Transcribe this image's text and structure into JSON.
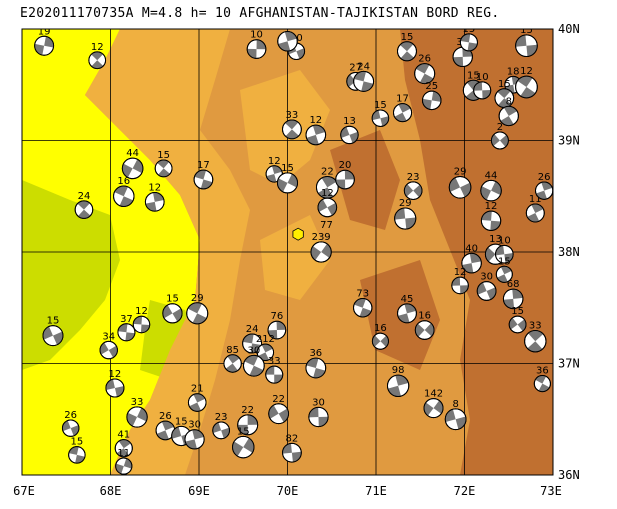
{
  "title": "E202011170735A M=4.8 h= 10 AFGHANISTAN-TAJIKISTAN BORD REG.",
  "colors": {
    "lowland": "#ffff00",
    "plain": "#ccdd00",
    "hill": "#f0b040",
    "mountain": "#e09a40",
    "highmountain": "#c07030",
    "grid": "#000000",
    "event_marker": "#ffee00"
  },
  "axes": {
    "x_labels": [
      "67E",
      "68E",
      "69E",
      "70E",
      "71E",
      "72E",
      "73E"
    ],
    "y_labels": [
      "40N",
      "39N",
      "38N",
      "37N",
      "36N"
    ]
  },
  "event": {
    "lon": 70.12,
    "lat": 38.16,
    "label": "77"
  },
  "mechanisms": [
    {
      "lon": 67.25,
      "lat": 39.85,
      "depth": "19"
    },
    {
      "lon": 67.85,
      "lat": 39.72,
      "depth": "12"
    },
    {
      "lon": 69.65,
      "lat": 39.82,
      "depth": "10"
    },
    {
      "lon": 70.1,
      "lat": 39.8,
      "depth": "20"
    },
    {
      "lon": 70.0,
      "lat": 39.89,
      "depth": "23"
    },
    {
      "lon": 70.77,
      "lat": 39.53,
      "depth": "27"
    },
    {
      "lon": 70.86,
      "lat": 39.53,
      "depth": "24"
    },
    {
      "lon": 71.35,
      "lat": 39.8,
      "depth": "15"
    },
    {
      "lon": 71.55,
      "lat": 39.6,
      "depth": "26"
    },
    {
      "lon": 71.98,
      "lat": 39.75,
      "depth": "32"
    },
    {
      "lon": 72.05,
      "lat": 39.88,
      "depth": "15"
    },
    {
      "lon": 72.7,
      "lat": 39.85,
      "depth": "15"
    },
    {
      "lon": 72.55,
      "lat": 39.5,
      "depth": "18"
    },
    {
      "lon": 72.7,
      "lat": 39.48,
      "depth": "12"
    },
    {
      "lon": 71.63,
      "lat": 39.36,
      "depth": "25"
    },
    {
      "lon": 72.1,
      "lat": 39.45,
      "depth": "15"
    },
    {
      "lon": 72.2,
      "lat": 39.45,
      "depth": "10"
    },
    {
      "lon": 72.45,
      "lat": 39.38,
      "depth": "15"
    },
    {
      "lon": 72.5,
      "lat": 39.22,
      "depth": "8"
    },
    {
      "lon": 72.4,
      "lat": 39.0,
      "depth": "2"
    },
    {
      "lon": 71.3,
      "lat": 39.25,
      "depth": "17"
    },
    {
      "lon": 71.05,
      "lat": 39.2,
      "depth": "15"
    },
    {
      "lon": 70.7,
      "lat": 39.05,
      "depth": "13"
    },
    {
      "lon": 70.05,
      "lat": 39.1,
      "depth": "33"
    },
    {
      "lon": 70.32,
      "lat": 39.05,
      "depth": "12"
    },
    {
      "lon": 68.25,
      "lat": 38.75,
      "depth": "44"
    },
    {
      "lon": 68.6,
      "lat": 38.75,
      "depth": "15"
    },
    {
      "lon": 69.05,
      "lat": 38.65,
      "depth": "17"
    },
    {
      "lon": 69.85,
      "lat": 38.7,
      "depth": "12"
    },
    {
      "lon": 70.0,
      "lat": 38.62,
      "depth": "15"
    },
    {
      "lon": 70.45,
      "lat": 38.58,
      "depth": "22"
    },
    {
      "lon": 70.65,
      "lat": 38.65,
      "depth": "20"
    },
    {
      "lon": 70.45,
      "lat": 38.4,
      "depth": "12"
    },
    {
      "lon": 68.5,
      "lat": 38.45,
      "depth": "12"
    },
    {
      "lon": 67.7,
      "lat": 38.38,
      "depth": "24"
    },
    {
      "lon": 68.15,
      "lat": 38.5,
      "depth": "16"
    },
    {
      "lon": 71.42,
      "lat": 38.55,
      "depth": "23"
    },
    {
      "lon": 71.33,
      "lat": 38.3,
      "depth": "29"
    },
    {
      "lon": 71.95,
      "lat": 38.58,
      "depth": "29"
    },
    {
      "lon": 72.3,
      "lat": 38.55,
      "depth": "44"
    },
    {
      "lon": 72.3,
      "lat": 38.28,
      "depth": "12"
    },
    {
      "lon": 72.8,
      "lat": 38.35,
      "depth": "11"
    },
    {
      "lon": 72.9,
      "lat": 38.55,
      "depth": "26"
    },
    {
      "lon": 72.35,
      "lat": 37.98,
      "depth": "13"
    },
    {
      "lon": 72.45,
      "lat": 37.98,
      "depth": "10"
    },
    {
      "lon": 72.45,
      "lat": 37.8,
      "depth": "15"
    },
    {
      "lon": 72.08,
      "lat": 37.9,
      "depth": "40"
    },
    {
      "lon": 71.95,
      "lat": 37.7,
      "depth": "12"
    },
    {
      "lon": 72.25,
      "lat": 37.65,
      "depth": "30"
    },
    {
      "lon": 72.55,
      "lat": 37.58,
      "depth": "68"
    },
    {
      "lon": 72.6,
      "lat": 37.35,
      "depth": "15"
    },
    {
      "lon": 72.8,
      "lat": 37.2,
      "depth": "33"
    },
    {
      "lon": 72.88,
      "lat": 36.82,
      "depth": "36"
    },
    {
      "lon": 70.38,
      "lat": 38.0,
      "depth": "239"
    },
    {
      "lon": 67.35,
      "lat": 37.25,
      "depth": "15"
    },
    {
      "lon": 67.98,
      "lat": 37.12,
      "depth": "34"
    },
    {
      "lon": 68.18,
      "lat": 37.28,
      "depth": "37"
    },
    {
      "lon": 68.35,
      "lat": 37.35,
      "depth": "12"
    },
    {
      "lon": 68.7,
      "lat": 37.45,
      "depth": "15"
    },
    {
      "lon": 68.98,
      "lat": 37.45,
      "depth": "29"
    },
    {
      "lon": 69.6,
      "lat": 37.18,
      "depth": "24"
    },
    {
      "lon": 69.88,
      "lat": 37.3,
      "depth": "76"
    },
    {
      "lon": 69.75,
      "lat": 37.1,
      "depth": "212"
    },
    {
      "lon": 69.38,
      "lat": 37.0,
      "depth": "85"
    },
    {
      "lon": 69.62,
      "lat": 36.98,
      "depth": "30"
    },
    {
      "lon": 69.85,
      "lat": 36.9,
      "depth": "33"
    },
    {
      "lon": 70.32,
      "lat": 36.96,
      "depth": "36"
    },
    {
      "lon": 70.85,
      "lat": 37.5,
      "depth": "73"
    },
    {
      "lon": 71.35,
      "lat": 37.45,
      "depth": "45"
    },
    {
      "lon": 71.05,
      "lat": 37.2,
      "depth": "16"
    },
    {
      "lon": 71.55,
      "lat": 37.3,
      "depth": "16"
    },
    {
      "lon": 68.05,
      "lat": 36.78,
      "depth": "12"
    },
    {
      "lon": 68.3,
      "lat": 36.52,
      "depth": "33"
    },
    {
      "lon": 68.98,
      "lat": 36.65,
      "depth": "21"
    },
    {
      "lon": 67.55,
      "lat": 36.42,
      "depth": "26"
    },
    {
      "lon": 67.62,
      "lat": 36.18,
      "depth": "15"
    },
    {
      "lon": 68.15,
      "lat": 36.24,
      "depth": "41"
    },
    {
      "lon": 68.15,
      "lat": 36.08,
      "depth": "11"
    },
    {
      "lon": 68.62,
      "lat": 36.4,
      "depth": "26"
    },
    {
      "lon": 68.8,
      "lat": 36.35,
      "depth": "15"
    },
    {
      "lon": 68.95,
      "lat": 36.32,
      "depth": "30"
    },
    {
      "lon": 69.25,
      "lat": 36.4,
      "depth": "23"
    },
    {
      "lon": 69.55,
      "lat": 36.45,
      "depth": "22"
    },
    {
      "lon": 69.5,
      "lat": 36.25,
      "depth": "15"
    },
    {
      "lon": 70.05,
      "lat": 36.2,
      "depth": "82"
    },
    {
      "lon": 71.25,
      "lat": 36.8,
      "depth": "98"
    },
    {
      "lon": 71.65,
      "lat": 36.6,
      "depth": "142"
    },
    {
      "lon": 71.9,
      "lat": 36.5,
      "depth": "8"
    },
    {
      "lon": 70.35,
      "lat": 36.52,
      "depth": "30"
    },
    {
      "lon": 69.9,
      "lat": 36.55,
      "depth": "22"
    }
  ]
}
